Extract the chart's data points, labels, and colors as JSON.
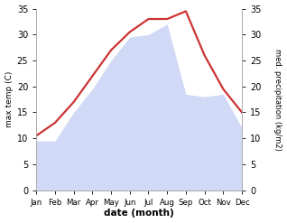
{
  "months": [
    "Jan",
    "Feb",
    "Mar",
    "Apr",
    "May",
    "Jun",
    "Jul",
    "Aug",
    "Sep",
    "Oct",
    "Nov",
    "Dec"
  ],
  "max_temp": [
    10.5,
    13.0,
    17.0,
    22.0,
    27.0,
    30.5,
    33.0,
    33.0,
    34.5,
    26.0,
    19.5,
    15.0
  ],
  "precipitation": [
    9.5,
    9.5,
    15.0,
    19.5,
    25.0,
    29.5,
    30.0,
    32.0,
    18.5,
    18.0,
    18.5,
    12.0
  ],
  "temp_color": "#cc3333",
  "precip_color": "#aabbee",
  "precip_fill_alpha": 0.55,
  "ylim": [
    0,
    35
  ],
  "yticks": [
    0,
    5,
    10,
    15,
    20,
    25,
    30,
    35
  ],
  "ylabel_left": "max temp (C)",
  "ylabel_right": "med. precipitation (kg/m2)",
  "xlabel": "date (month)",
  "background_color": "#ffffff",
  "line_width": 1.6,
  "fig_width": 3.18,
  "fig_height": 2.47,
  "dpi": 100
}
